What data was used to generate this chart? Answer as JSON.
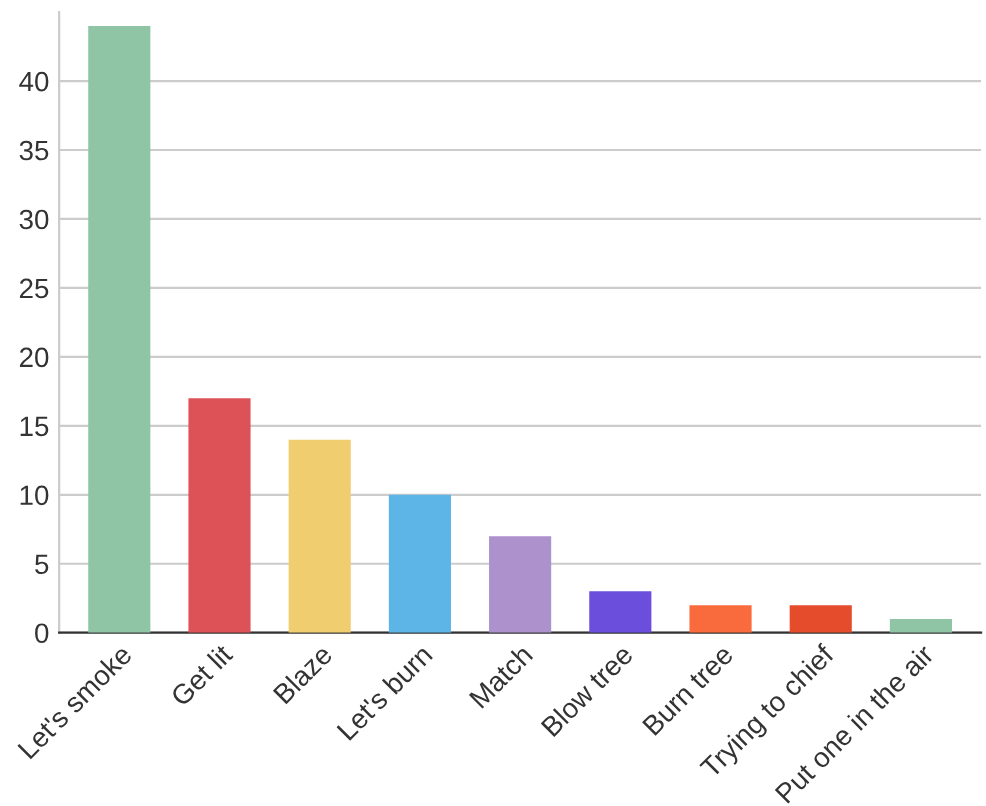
{
  "chart_data": {
    "type": "bar",
    "categories": [
      "Let's smoke",
      "Get lit",
      "Blaze",
      "Let's burn",
      "Match",
      "Blow tree",
      "Burn tree",
      "Trying to chief",
      "Put one in the air"
    ],
    "values": [
      44,
      17,
      14,
      10,
      7,
      3,
      2,
      2,
      1
    ],
    "colors": [
      "#8fc4a5",
      "#dd5257",
      "#f0ce6f",
      "#5cb5e6",
      "#ac91cc",
      "#6b4fdc",
      "#f96a3c",
      "#e44c2b",
      "#8fc4a5"
    ],
    "ylim": [
      0,
      45
    ],
    "yticks": [
      0,
      5,
      10,
      15,
      20,
      25,
      30,
      35,
      40
    ],
    "grid": "y",
    "legend": false
  }
}
